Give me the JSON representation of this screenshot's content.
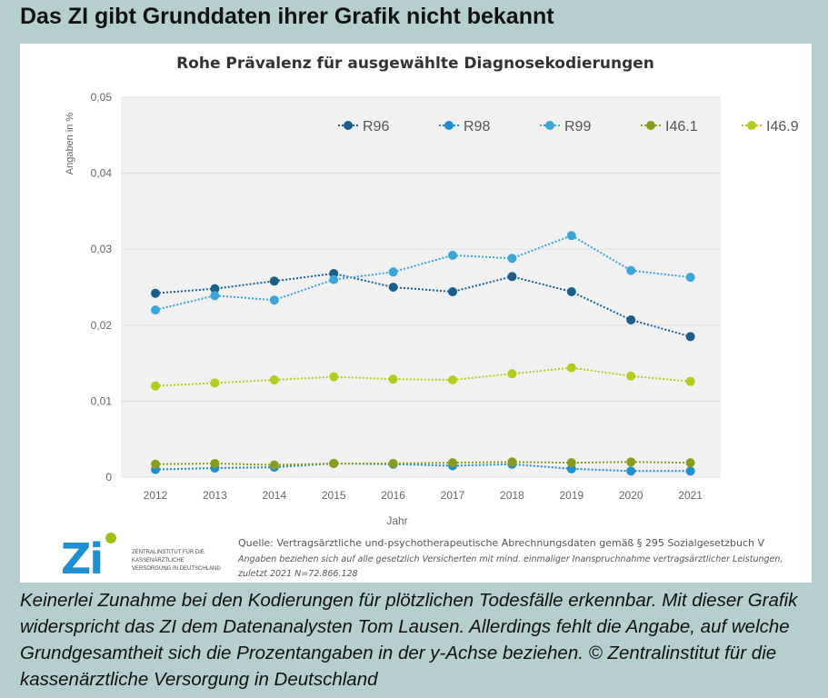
{
  "header": "Das ZI gibt Grunddaten ihrer Grafik nicht bekannt",
  "caption": "Keinerlei Zunahme bei den Kodierungen für plötzlichen Todesfälle erkennbar. Mit dieser Grafik widerspricht das ZI dem Datenanalysten Tom Lausen. Allerdings fehlt die Angabe, auf welche Grundgesamtheit sich die Prozentangaben in der y-Achse beziehen. © Zentralinstitut für die kassenärztliche Versorgung in Deutschland",
  "logo": {
    "mark": "Zi",
    "text": "ZENTRALINSTITUT FÜR DIE KASSENÄRZTLICHE VERSORGUNG IN DEUTSCHLAND"
  },
  "source": {
    "line1": "Quelle: Vertragsärztliche und-psychotherapeutische Abrechnungsdaten gemäß § 295 Sozialgesetzbuch V",
    "line2": "Angaben beziehen sich auf alle gesetzlich Versicherten mit mind. einmaliger Inanspruchnahme vertragsärztlicher Leistungen,",
    "line3": "zuletzt 2021 N=72.866.128"
  },
  "chart_data": {
    "type": "line",
    "title": "Rohe Prävalenz für ausgewählte Diagnosekodierungen",
    "xlabel": "Jahr",
    "ylabel": "Angaben in %",
    "ylim": [
      0,
      0.05
    ],
    "yticks": [
      0,
      0.01,
      0.02,
      0.03,
      0.04,
      0.05
    ],
    "ytick_labels": [
      "0",
      "0,01",
      "0,02",
      "0,03",
      "0,04",
      "0,05"
    ],
    "grid": true,
    "legend": "top",
    "x": [
      "2012",
      "2013",
      "2014",
      "2015",
      "2016",
      "2017",
      "2018",
      "2019",
      "2020",
      "2021"
    ],
    "series": [
      {
        "name": "R96",
        "color": "#1a5f8c",
        "values": [
          0.0242,
          0.0248,
          0.0258,
          0.0268,
          0.025,
          0.0244,
          0.0264,
          0.0244,
          0.0207,
          0.0185
        ]
      },
      {
        "name": "R98",
        "color": "#1e8fd0",
        "values": [
          0.001,
          0.0012,
          0.0013,
          0.0018,
          0.0017,
          0.0015,
          0.0017,
          0.0011,
          0.0008,
          0.0008
        ]
      },
      {
        "name": "R99",
        "color": "#3aa5d8",
        "values": [
          0.022,
          0.0239,
          0.0233,
          0.026,
          0.027,
          0.0292,
          0.0288,
          0.0318,
          0.0272,
          0.0263
        ]
      },
      {
        "name": "I46.1",
        "color": "#8a9a1a",
        "values": [
          0.0017,
          0.0018,
          0.0016,
          0.0018,
          0.0018,
          0.0019,
          0.002,
          0.0019,
          0.002,
          0.0019
        ]
      },
      {
        "name": "I46.9",
        "color": "#b5cc1a",
        "values": [
          0.012,
          0.0124,
          0.0128,
          0.0132,
          0.0129,
          0.0128,
          0.0136,
          0.0144,
          0.0133,
          0.0126
        ]
      }
    ]
  }
}
